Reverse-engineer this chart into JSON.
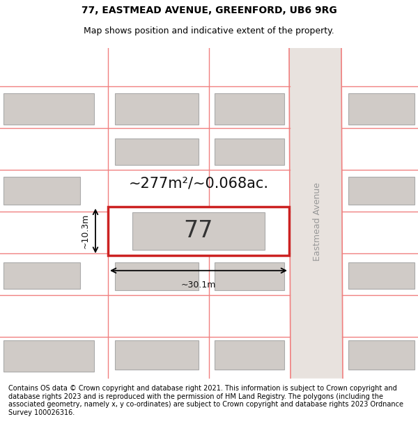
{
  "title_line1": "77, EASTMEAD AVENUE, GREENFORD, UB6 9RG",
  "title_line2": "Map shows position and indicative extent of the property.",
  "footer_text": "Contains OS data © Crown copyright and database right 2021. This information is subject to Crown copyright and database rights 2023 and is reproduced with the permission of HM Land Registry. The polygons (including the associated geometry, namely x, y co-ordinates) are subject to Crown copyright and database rights 2023 Ordnance Survey 100026316.",
  "area_text": "~277m²/~0.068ac.",
  "property_number": "77",
  "width_label": "~30.1m",
  "height_label": "~10.3m",
  "street_label": "Eastmead Avenue",
  "bg_color": "#f2ede9",
  "map_bg": "#f2ede9",
  "road_color": "#e8e2de",
  "plot_outline_color": "#cc2222",
  "plot_fill_color": "#ffffff",
  "building_fill_color": "#d0cbc7",
  "building_outline_color": "#aaaaaa",
  "road_line_color": "#f08080",
  "title_fontsize": 10,
  "subtitle_fontsize": 9,
  "footer_fontsize": 7,
  "area_fontsize": 15,
  "number_fontsize": 24
}
